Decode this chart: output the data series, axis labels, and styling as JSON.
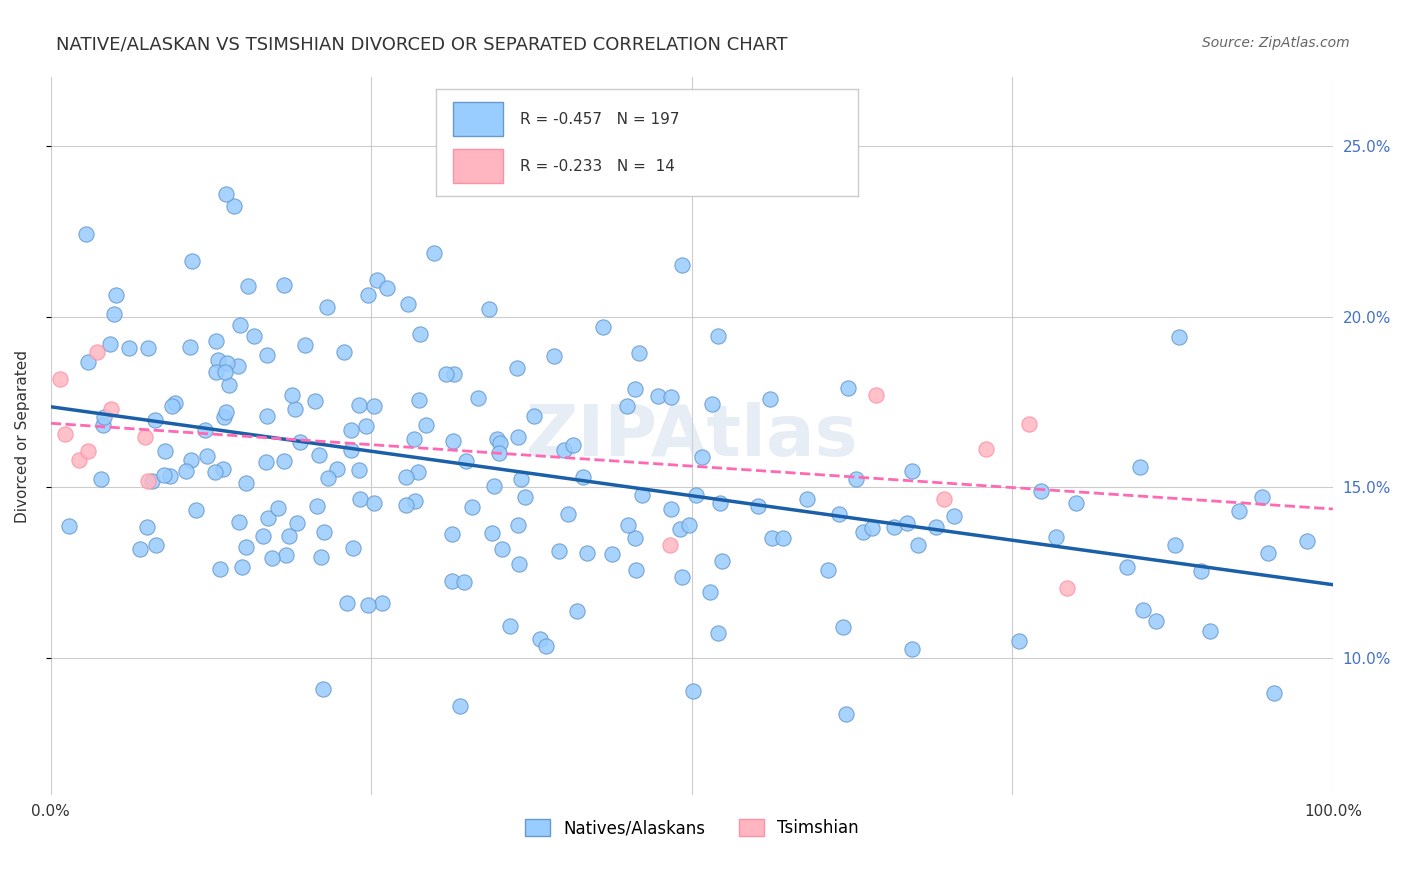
{
  "title": "NATIVE/ALASKAN VS TSIMSHIAN DIVORCED OR SEPARATED CORRELATION CHART",
  "source": "Source: ZipAtlas.com",
  "ylabel": "Divorced or Separated",
  "xlim": [
    0,
    1.0
  ],
  "ylim": [
    0.06,
    0.27
  ],
  "ytick_positions": [
    0.1,
    0.15,
    0.2,
    0.25
  ],
  "ytick_labels": [
    "10.0%",
    "15.0%",
    "20.0%",
    "25.0%"
  ],
  "blue_R": -0.457,
  "blue_N": 197,
  "pink_R": -0.233,
  "pink_N": 14,
  "blue_scatter_color": "#99ccff",
  "pink_scatter_color": "#ffb6c1",
  "blue_line_color": "#1a5fa8",
  "pink_line_color": "#ff69b4",
  "blue_edge_color": "#6699cc",
  "pink_edge_color": "#ff8fa3",
  "background_color": "#ffffff",
  "grid_color": "#cccccc",
  "title_color": "#333333",
  "seed": 42
}
